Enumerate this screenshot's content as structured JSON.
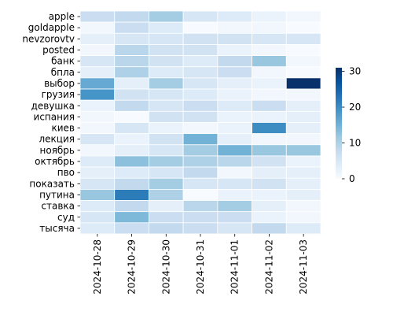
{
  "chart_data": {
    "type": "heatmap",
    "title": "",
    "xlabel": "",
    "ylabel": "",
    "x": [
      "2024-10-28",
      "2024-10-29",
      "2024-10-30",
      "2024-10-31",
      "2024-11-01",
      "2024-11-02",
      "2024-11-03"
    ],
    "y": [
      "apple",
      "goldapple",
      "nevzorovtv",
      "posted",
      "банк",
      "бпла",
      "выбор",
      "грузия",
      "девушка",
      "испания",
      "киев",
      "лекция",
      "ноябрь",
      "октябрь",
      "пво",
      "показать",
      "путина",
      "ставка",
      "суд",
      "тысяча"
    ],
    "values": [
      [
        7,
        8,
        11,
        5,
        4,
        2,
        1
      ],
      [
        1,
        7,
        4,
        0,
        1,
        1,
        0
      ],
      [
        3,
        5,
        5,
        6,
        6,
        5,
        5
      ],
      [
        1,
        9,
        6,
        6,
        2,
        1,
        0
      ],
      [
        5,
        9,
        6,
        4,
        8,
        12,
        1
      ],
      [
        3,
        10,
        4,
        5,
        7,
        1,
        0
      ],
      [
        16,
        3,
        11,
        5,
        3,
        2,
        31
      ],
      [
        19,
        6,
        5,
        4,
        2,
        1,
        1
      ],
      [
        2,
        8,
        5,
        7,
        4,
        7,
        3
      ],
      [
        1,
        0,
        6,
        6,
        2,
        2,
        3
      ],
      [
        1,
        5,
        2,
        1,
        2,
        20,
        3
      ],
      [
        5,
        2,
        6,
        15,
        3,
        1,
        1
      ],
      [
        1,
        3,
        5,
        11,
        15,
        12,
        12
      ],
      [
        4,
        13,
        11,
        10,
        9,
        6,
        2
      ],
      [
        3,
        4,
        5,
        8,
        1,
        3,
        3
      ],
      [
        5,
        8,
        11,
        5,
        5,
        6,
        3
      ],
      [
        12,
        22,
        10,
        0,
        2,
        2,
        3
      ],
      [
        4,
        8,
        3,
        9,
        11,
        3,
        1
      ],
      [
        5,
        14,
        7,
        7,
        7,
        2,
        1
      ],
      [
        4,
        7,
        8,
        7,
        5,
        8,
        4
      ]
    ],
    "vmin": 0,
    "vmax": 31,
    "colormap": "Blues",
    "colorbar": {
      "ticks": [
        0,
        10,
        20,
        30
      ]
    },
    "grid": true
  }
}
